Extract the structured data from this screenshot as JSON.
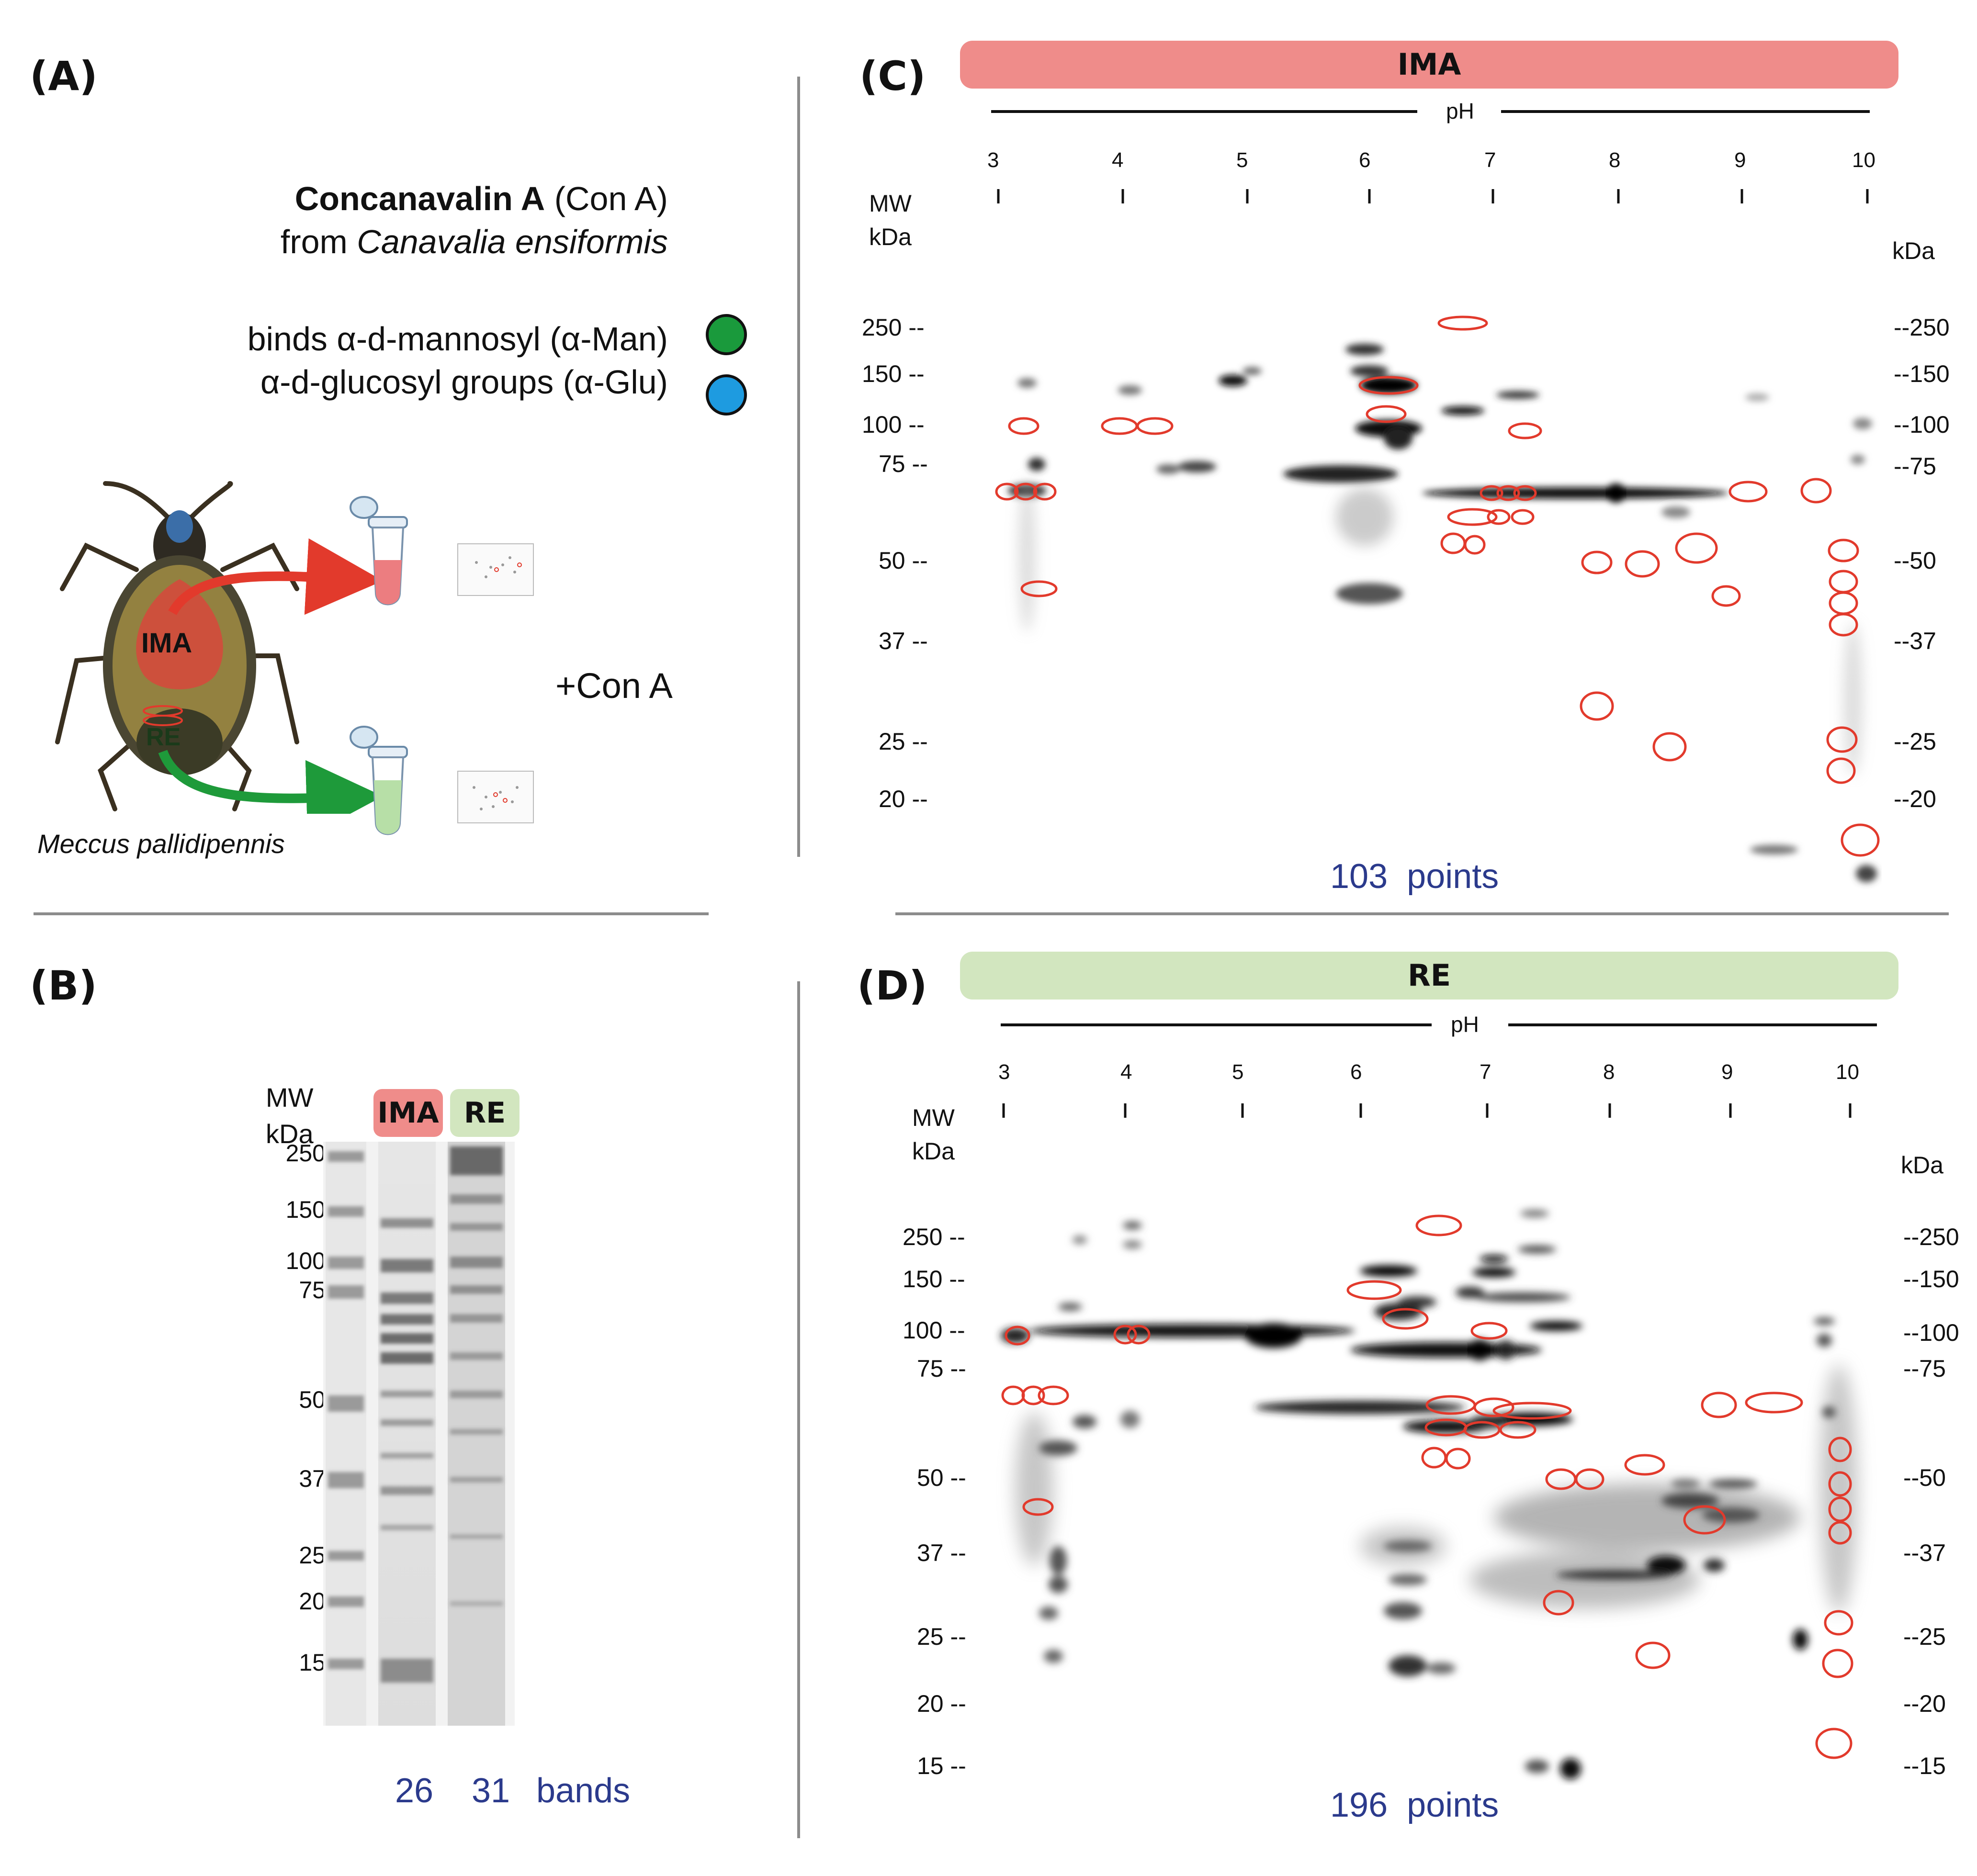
{
  "panels": {
    "A": {
      "label": "(A)",
      "lectin_name": "Concanavalin A",
      "lectin_abbr": "(Con A)",
      "source_prefix": "from",
      "source_species": "Canavalia ensiformis",
      "binding_line1": "binds α-d-mannosyl (α-Man)",
      "binding_line2": "α-d-glucosyl groups (α-Glu)",
      "dot_colors": {
        "man": "#1a9a3c",
        "glu": "#1e9be0"
      },
      "insect_name": "Meccus pallidipennis",
      "ima_tag": "IMA",
      "re_tag": "RE",
      "treatment": "+Con A",
      "arrow_colors": {
        "ima": "#e23a2c",
        "re": "#1e9a3a"
      }
    },
    "B": {
      "label": "(B)",
      "mw_title_1": "MW",
      "mw_title_2": "kDa",
      "lane_ima": "IMA",
      "lane_re": "RE",
      "markers": [
        "250",
        "150",
        "100",
        "75",
        "50",
        "37",
        "25",
        "20",
        "15"
      ],
      "count_ima": "26",
      "count_re": "31",
      "count_unit": "bands"
    },
    "C": {
      "label": "(C)",
      "header": "IMA",
      "header_color": "#ef8c8a",
      "ph_label": "pH",
      "ph_ticks": [
        "3",
        "4",
        "5",
        "6",
        "7",
        "8",
        "9",
        "10"
      ],
      "mw_title_1": "MW",
      "mw_title_2": "kDa",
      "right_title": "kDa",
      "mw_left": [
        "250 --",
        "150 --",
        "100 --",
        "75 --",
        "50 --",
        "37 --",
        "25 --",
        "20 --"
      ],
      "mw_right": [
        "--250",
        "--150",
        "--100",
        "--75",
        "--50",
        "--37",
        "--25",
        "--20"
      ],
      "count": "103",
      "count_unit": "points"
    },
    "D": {
      "label": "(D)",
      "header": "RE",
      "header_color": "#d2e6bf",
      "ph_label": "pH",
      "ph_ticks": [
        "3",
        "4",
        "5",
        "6",
        "7",
        "8",
        "9",
        "10"
      ],
      "mw_title_1": "MW",
      "mw_title_2": "kDa",
      "right_title": "kDa",
      "mw_left": [
        "250 --",
        "150 --",
        "100 --",
        "75 --",
        "50 --",
        "37 --",
        "25 --",
        "20 --",
        "15 --"
      ],
      "mw_right": [
        "--250",
        "--150",
        "--100",
        "--75",
        "--50",
        "--37",
        "--25",
        "--20",
        "--15"
      ],
      "count": "196",
      "count_unit": "points"
    }
  }
}
